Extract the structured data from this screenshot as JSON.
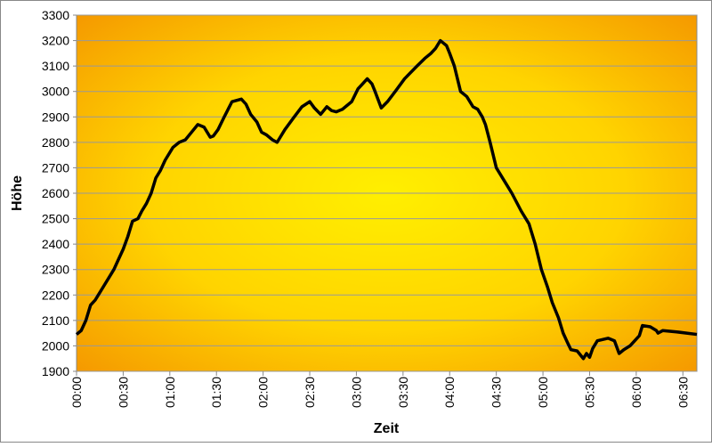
{
  "chart_data": {
    "type": "line",
    "x_label": "Zeit",
    "y_label": "Höhe",
    "x": [
      0,
      3,
      6,
      9,
      12,
      15,
      18,
      21,
      24,
      27,
      30,
      33,
      36,
      39.5,
      42,
      45,
      48,
      51,
      54,
      57,
      62,
      66,
      70,
      74,
      78,
      82,
      86,
      88,
      91,
      95,
      100,
      106,
      109,
      112,
      116,
      119,
      122,
      126,
      129,
      134,
      140,
      145,
      150,
      153,
      157,
      161,
      164,
      167,
      171,
      177,
      181,
      184,
      187,
      190,
      192,
      196,
      200,
      205,
      211,
      219,
      224,
      228,
      231,
      234,
      236,
      238,
      240,
      243,
      247,
      251,
      255,
      258,
      261,
      263,
      266,
      270,
      276,
      280,
      286,
      291,
      295,
      299,
      303,
      306,
      310,
      313,
      316,
      318,
      322,
      326,
      328,
      330,
      332,
      335,
      342,
      346,
      349,
      352,
      356,
      362,
      364,
      369,
      373,
      374,
      377,
      386,
      399
    ],
    "series": [
      {
        "name": "Höhe",
        "color": "#000000",
        "values": [
          2045,
          2060,
          2100,
          2160,
          2180,
          2210,
          2240,
          2270,
          2300,
          2340,
          2380,
          2430,
          2490,
          2500,
          2530,
          2560,
          2600,
          2660,
          2690,
          2730,
          2780,
          2800,
          2810,
          2840,
          2870,
          2860,
          2820,
          2825,
          2850,
          2900,
          2960,
          2970,
          2950,
          2910,
          2880,
          2840,
          2830,
          2810,
          2800,
          2850,
          2900,
          2940,
          2960,
          2935,
          2910,
          2940,
          2925,
          2920,
          2930,
          2960,
          3010,
          3030,
          3050,
          3030,
          3000,
          2935,
          2960,
          3000,
          3050,
          3100,
          3130,
          3150,
          3170,
          3200,
          3190,
          3180,
          3150,
          3100,
          3000,
          2980,
          2940,
          2930,
          2900,
          2870,
          2800,
          2700,
          2640,
          2600,
          2530,
          2480,
          2400,
          2300,
          2230,
          2170,
          2110,
          2050,
          2010,
          1985,
          1980,
          1950,
          1970,
          1955,
          1990,
          2020,
          2030,
          2020,
          1970,
          1985,
          2000,
          2040,
          2080,
          2075,
          2060,
          2050,
          2060,
          2055,
          2045
        ]
      }
    ],
    "xlim": [
      0,
      399
    ],
    "ylim": [
      1900,
      3300
    ],
    "xticks": [
      {
        "value": 0,
        "label": "00:00"
      },
      {
        "value": 30,
        "label": "00:30"
      },
      {
        "value": 60,
        "label": "01:00"
      },
      {
        "value": 90,
        "label": "01:30"
      },
      {
        "value": 120,
        "label": "02:00"
      },
      {
        "value": 150,
        "label": "02:30"
      },
      {
        "value": 180,
        "label": "03:00"
      },
      {
        "value": 210,
        "label": "03:30"
      },
      {
        "value": 240,
        "label": "04:00"
      },
      {
        "value": 270,
        "label": "04:30"
      },
      {
        "value": 300,
        "label": "05:00"
      },
      {
        "value": 330,
        "label": "05:30"
      },
      {
        "value": 360,
        "label": "06:00"
      },
      {
        "value": 390,
        "label": "06:30"
      }
    ],
    "yticks": [
      1900,
      2000,
      2100,
      2200,
      2300,
      2400,
      2500,
      2600,
      2700,
      2800,
      2900,
      3000,
      3100,
      3200,
      3300
    ],
    "grid": true
  }
}
